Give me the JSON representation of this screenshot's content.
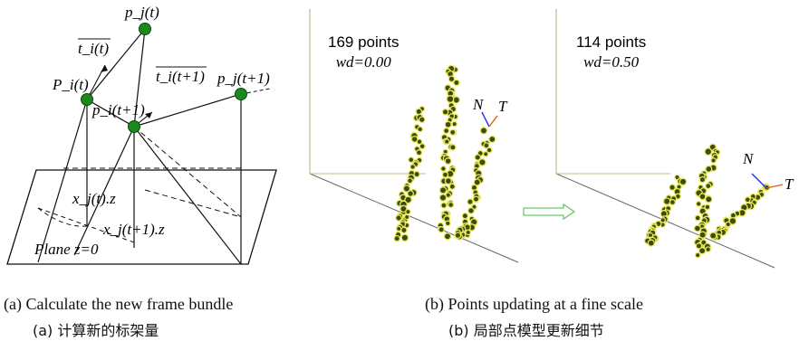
{
  "panel_a": {
    "labels": {
      "pj_t": "p_j(t)",
      "ti_t": "t_i(t)",
      "Pi_t": "P_i(t)",
      "ti_t1": "t_i(t+1)",
      "pi_t1": "p_i(t+1)",
      "pj_t1": "p_j(t+1)",
      "xj_t_z": "x_j(t).z",
      "xj_t1_z": "x_j(t+1).z",
      "plane": "Plane z=0"
    },
    "caption_en": "(a) Calculate the new frame bundle",
    "caption_cn": "(a) 计算新的标架量"
  },
  "panel_b": {
    "left": {
      "points_label": "169 points",
      "wd_label": "wd=0.00"
    },
    "right": {
      "points_label": "114 points",
      "wd_label": "wd=0.50"
    },
    "axis_N": "N",
    "axis_T": "T",
    "caption_en": "(b) Points updating at a fine scale",
    "caption_cn": "(b) 局部点模型更新细节"
  },
  "colors": {
    "node": "#1a8a1a",
    "point_core": "#3d4a10",
    "point_rim": "#e8e85a",
    "arrow": "#66cc66",
    "N_arrow": "#1a3ad6",
    "T_arrow": "#e05a10"
  }
}
